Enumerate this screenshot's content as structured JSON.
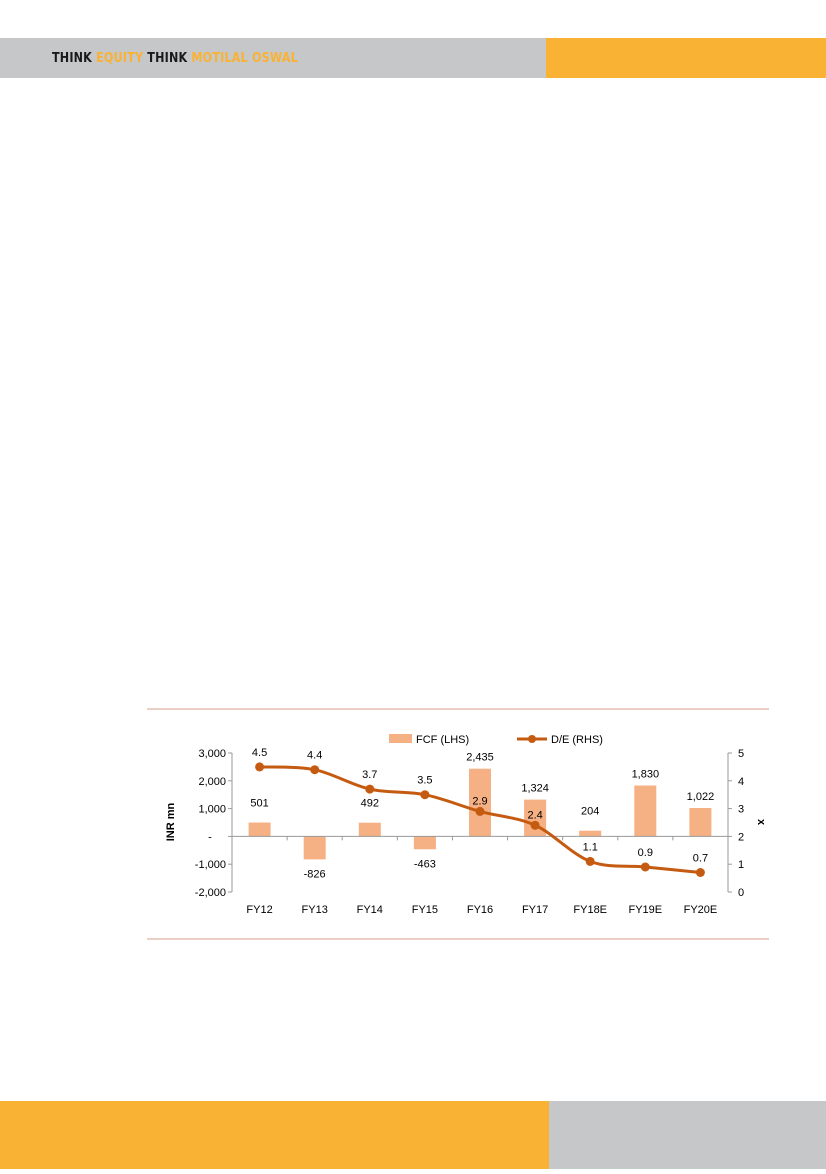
{
  "header": {
    "brand_parts": [
      "THINK ",
      "EQUITY ",
      "THINK ",
      "MOTILAL OSWAL"
    ]
  },
  "colors": {
    "header_gray": "#c6c7c9",
    "accent_orange": "#f9b233",
    "bar": "#f5b183",
    "line": "#c55a11",
    "rule": "#d4a28a"
  },
  "chart_data": {
    "type": "bar",
    "categories": [
      "FY12",
      "FY13",
      "FY14",
      "FY15",
      "FY16",
      "FY17",
      "FY18E",
      "FY19E",
      "FY20E"
    ],
    "series": [
      {
        "name": "FCF (LHS)",
        "type": "bar",
        "axis": "left",
        "values": [
          501,
          -826,
          492,
          -463,
          2435,
          1324,
          204,
          1830,
          1022
        ],
        "labels": [
          "501",
          "-826",
          "492",
          "-463",
          "2,435",
          "1,324",
          "204",
          "1,830",
          "1,022"
        ]
      },
      {
        "name": "D/E (RHS)",
        "type": "line",
        "axis": "right",
        "values": [
          4.5,
          4.4,
          3.7,
          3.5,
          2.9,
          2.4,
          1.1,
          0.9,
          0.7
        ],
        "labels": [
          "4.5",
          "4.4",
          "3.7",
          "3.5",
          "2.9",
          "2.4",
          "1.1",
          "0.9",
          "0.7"
        ]
      }
    ],
    "ylabel": "INR mn",
    "y2label": "x",
    "ylim": [
      -2000,
      3000
    ],
    "y2lim": [
      0,
      5
    ],
    "yticks": [
      -2000,
      -1000,
      0,
      1000,
      2000,
      3000
    ],
    "ytick_labels": [
      "-2,000",
      "-1,000",
      "-",
      "1,000",
      "2,000",
      "3,000"
    ],
    "y2ticks": [
      0,
      1,
      2,
      3,
      4,
      5
    ],
    "y2tick_labels": [
      "0",
      "1",
      "2",
      "3",
      "4",
      "5"
    ],
    "grid": false,
    "legend": "top"
  }
}
